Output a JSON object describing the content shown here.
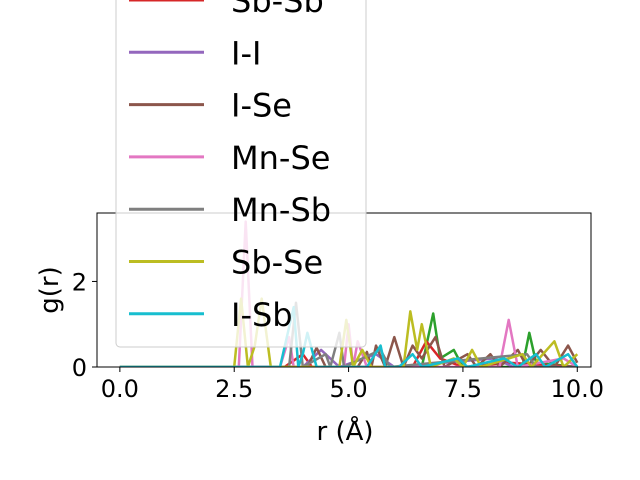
{
  "chart_data": {
    "type": "line",
    "xlabel": "r (Å)",
    "ylabel": "g(r)",
    "xlim": [
      -0.5,
      10.3
    ],
    "ylim": [
      0,
      3.6
    ],
    "x_ticks": [
      0.0,
      2.5,
      5.0,
      7.5,
      10.0
    ],
    "x_tick_labels": [
      "0.0",
      "2.5",
      "5.0",
      "7.5",
      "10.0"
    ],
    "y_ticks": [
      0,
      2
    ],
    "y_tick_labels": [
      "0",
      "2"
    ],
    "legend_position": "upper-left",
    "series": [
      {
        "name": "Sb-Sb",
        "color": "#d62728",
        "points": [
          [
            0,
            0
          ],
          [
            2.5,
            0
          ],
          [
            3.0,
            0
          ],
          [
            3.6,
            0
          ],
          [
            4.0,
            0.3
          ],
          [
            4.2,
            0
          ],
          [
            6.4,
            0
          ],
          [
            6.7,
            0.6
          ],
          [
            7.0,
            0.2
          ],
          [
            7.5,
            0
          ],
          [
            8.5,
            0.1
          ],
          [
            10.0,
            0
          ]
        ]
      },
      {
        "name": "I-I",
        "color": "#9467bd",
        "points": [
          [
            0,
            0
          ],
          [
            3.6,
            0
          ],
          [
            4.0,
            0
          ],
          [
            4.4,
            0.4
          ],
          [
            4.8,
            0
          ],
          [
            5.6,
            0.3
          ],
          [
            6.0,
            0
          ],
          [
            8.2,
            0.2
          ],
          [
            8.6,
            0
          ],
          [
            10.0,
            0
          ]
        ]
      },
      {
        "name": "I-Se",
        "color": "#8c564b",
        "points": [
          [
            0,
            0
          ],
          [
            4.1,
            0
          ],
          [
            4.3,
            0.45
          ],
          [
            4.5,
            0
          ],
          [
            5.2,
            0
          ],
          [
            5.4,
            0.35
          ],
          [
            5.5,
            0
          ],
          [
            5.6,
            0.5
          ],
          [
            5.8,
            0
          ],
          [
            6.0,
            0.7
          ],
          [
            6.2,
            0
          ],
          [
            6.4,
            0.5
          ],
          [
            6.6,
            0.2
          ],
          [
            6.9,
            0.7
          ],
          [
            7.1,
            0
          ],
          [
            7.6,
            0.3
          ],
          [
            7.8,
            0
          ],
          [
            8.1,
            0.3
          ],
          [
            8.3,
            0
          ],
          [
            8.7,
            0.4
          ],
          [
            8.9,
            0
          ],
          [
            9.2,
            0.4
          ],
          [
            9.5,
            0
          ],
          [
            9.8,
            0.5
          ],
          [
            10.0,
            0.1
          ]
        ]
      },
      {
        "name": "Mn-Se",
        "color": "#e377c2",
        "points": [
          [
            0,
            0
          ],
          [
            2.6,
            0
          ],
          [
            2.75,
            3.4
          ],
          [
            2.9,
            0
          ],
          [
            3.5,
            0
          ],
          [
            3.7,
            0.7
          ],
          [
            3.8,
            0
          ],
          [
            4.9,
            0
          ],
          [
            5.0,
            1.0
          ],
          [
            5.1,
            0
          ],
          [
            5.2,
            0.6
          ],
          [
            5.4,
            0
          ],
          [
            8.3,
            0
          ],
          [
            8.5,
            1.1
          ],
          [
            8.7,
            0
          ],
          [
            9.7,
            0.2
          ],
          [
            10.0,
            0
          ]
        ]
      },
      {
        "name": "Mn-Sb",
        "color": "#7f7f7f",
        "points": [
          [
            0,
            0
          ],
          [
            3.7,
            0
          ],
          [
            3.85,
            1.5
          ],
          [
            4.0,
            0
          ],
          [
            4.5,
            0.3
          ],
          [
            4.6,
            0
          ],
          [
            4.8,
            0.8
          ],
          [
            4.9,
            0
          ],
          [
            5.7,
            0.4
          ],
          [
            5.9,
            0
          ],
          [
            8.9,
            0.3
          ],
          [
            9.1,
            0
          ],
          [
            10.0,
            0
          ]
        ]
      },
      {
        "name": "Sb-Se",
        "color": "#bcbd22",
        "points": [
          [
            0,
            0
          ],
          [
            2.5,
            0
          ],
          [
            2.65,
            1.6
          ],
          [
            2.8,
            0
          ],
          [
            2.95,
            0.5
          ],
          [
            3.1,
            1.6
          ],
          [
            3.3,
            0
          ],
          [
            4.8,
            0
          ],
          [
            4.95,
            1.1
          ],
          [
            5.1,
            0
          ],
          [
            5.3,
            0.4
          ],
          [
            5.5,
            0
          ],
          [
            6.2,
            0
          ],
          [
            6.35,
            1.3
          ],
          [
            6.5,
            0.4
          ],
          [
            6.6,
            1.0
          ],
          [
            6.8,
            0
          ],
          [
            7.3,
            0.2
          ],
          [
            7.5,
            0
          ],
          [
            7.7,
            0.4
          ],
          [
            7.9,
            0
          ],
          [
            8.8,
            0.3
          ],
          [
            9.0,
            0
          ],
          [
            9.5,
            0.6
          ],
          [
            9.7,
            0
          ],
          [
            10.0,
            0.3
          ]
        ]
      },
      {
        "name": "I-Sb",
        "color": "#17becf",
        "points": [
          [
            0,
            0
          ],
          [
            3.5,
            0
          ],
          [
            3.8,
            1.4
          ],
          [
            3.9,
            0
          ],
          [
            4.0,
            0.3
          ],
          [
            4.1,
            0.8
          ],
          [
            4.3,
            0
          ],
          [
            5.4,
            0
          ],
          [
            5.7,
            0.5
          ],
          [
            5.8,
            0
          ],
          [
            6.1,
            0
          ],
          [
            6.4,
            0.3
          ],
          [
            6.6,
            0
          ],
          [
            7.4,
            0.2
          ],
          [
            7.6,
            0
          ],
          [
            8.4,
            0.2
          ],
          [
            8.7,
            0
          ],
          [
            9.1,
            0.3
          ],
          [
            9.3,
            0
          ],
          [
            9.8,
            0.3
          ],
          [
            10.0,
            0
          ]
        ]
      },
      {
        "name": "",
        "color": "#2ca02c",
        "points": [
          [
            0,
            0
          ],
          [
            6.6,
            0
          ],
          [
            6.85,
            1.25
          ],
          [
            7.0,
            0.2
          ],
          [
            7.3,
            0.4
          ],
          [
            7.5,
            0
          ],
          [
            8.8,
            0
          ],
          [
            8.95,
            0.8
          ],
          [
            9.1,
            0.1
          ],
          [
            10.0,
            0
          ]
        ]
      }
    ]
  }
}
